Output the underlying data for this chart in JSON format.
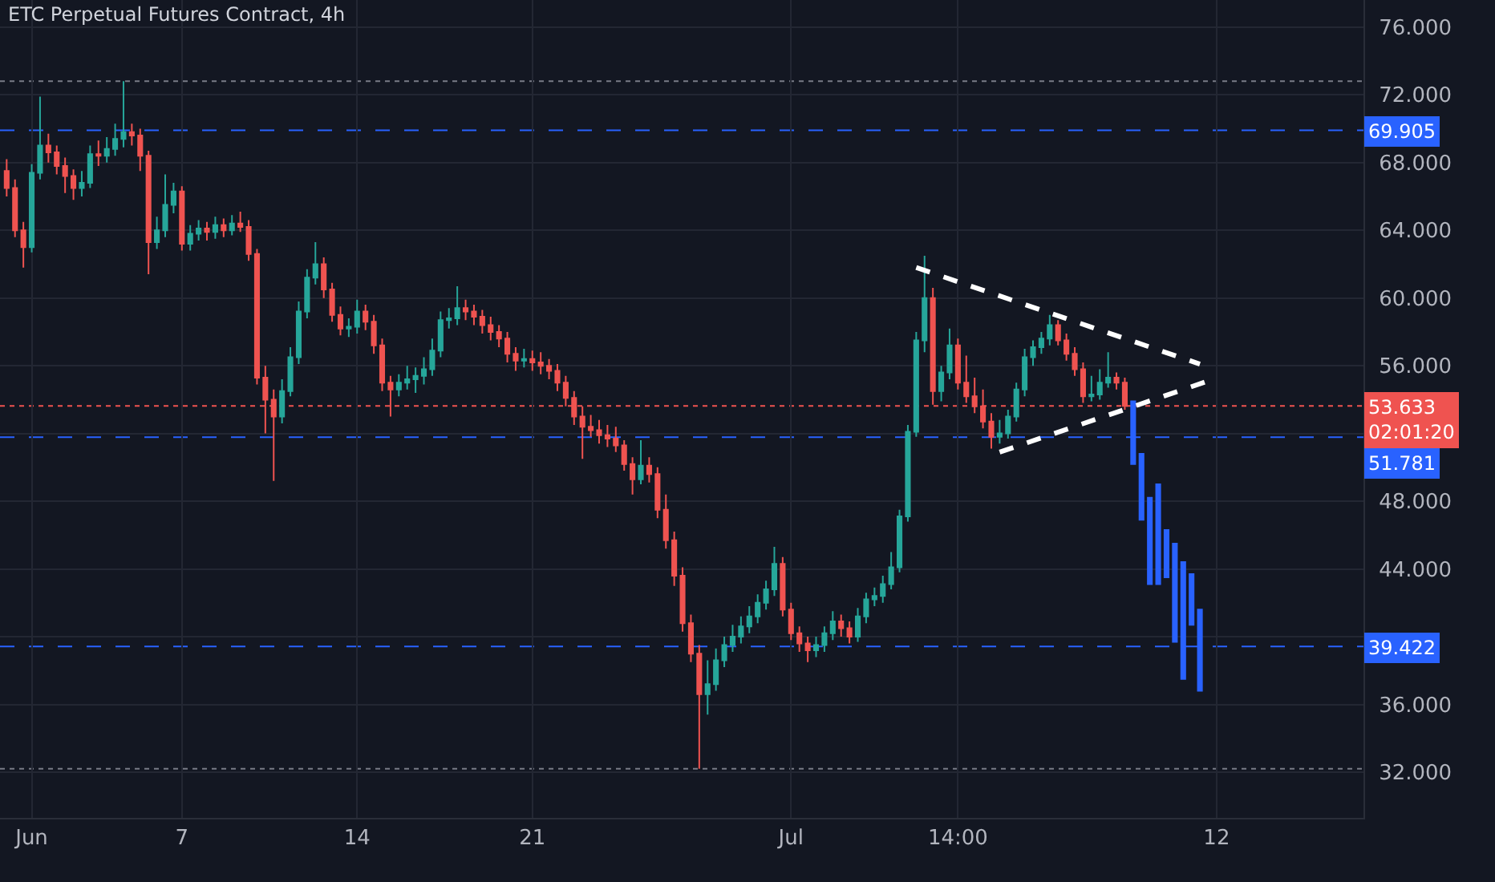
{
  "chart_data": {
    "type": "candlestick",
    "title": "ETC Perpetual Futures Contract, 4h",
    "categories": [
      null,
      null,
      null,
      "Jun",
      null,
      null,
      null,
      null,
      null,
      null,
      null,
      null,
      null,
      null,
      null,
      null,
      null,
      null,
      null,
      null,
      null,
      "7",
      null,
      null,
      null,
      null,
      null,
      null,
      null,
      null,
      null,
      null,
      null,
      null,
      null,
      null,
      null,
      null,
      null,
      null,
      null,
      null,
      "14",
      null,
      null,
      null,
      null,
      null,
      null,
      null,
      null,
      null,
      null,
      null,
      null,
      null,
      null,
      null,
      null,
      null,
      null,
      null,
      null,
      "21",
      null,
      null,
      null,
      null,
      null,
      null,
      null,
      null,
      null,
      null,
      null,
      null,
      null,
      null,
      null,
      null,
      null,
      null,
      null,
      null,
      null,
      null,
      null,
      null,
      null,
      null,
      null,
      null,
      null,
      null,
      "Jul",
      null,
      null,
      null,
      null,
      null,
      null,
      null,
      null,
      null,
      null,
      null,
      null,
      null,
      null,
      null,
      null,
      null,
      null,
      null,
      "14:00",
      null,
      null,
      null,
      null,
      null,
      null,
      null,
      null,
      null,
      null,
      null,
      null,
      null,
      null,
      null,
      null,
      null,
      null,
      null,
      null,
      null,
      null,
      null,
      null,
      null,
      null,
      null,
      null,
      null,
      null,
      "12",
      null,
      null,
      null,
      null,
      null,
      null,
      null,
      null,
      null,
      null,
      null,
      null,
      null,
      null,
      null,
      null,
      null
    ],
    "ylim": [
      29.3,
      77.6
    ],
    "yticks": [
      {
        "value": 32,
        "label": "32.000"
      },
      {
        "value": 36,
        "label": "36.000"
      },
      {
        "value": 40,
        "label": null
      },
      {
        "value": 44,
        "label": "44.000"
      },
      {
        "value": 48,
        "label": "48.000"
      },
      {
        "value": 52,
        "label": null
      },
      {
        "value": 56,
        "label": "56.000"
      },
      {
        "value": 60,
        "label": "60.000"
      },
      {
        "value": 64,
        "label": "64.000"
      },
      {
        "value": 68,
        "label": "68.000"
      },
      {
        "value": 72,
        "label": "72.000"
      },
      {
        "value": 76,
        "label": "76.000"
      }
    ],
    "grid": true,
    "series": [
      {
        "colors": [
          "#ef5350",
          "#ef5350",
          "#ef5350",
          "#26a69a",
          "#26a69a",
          "#ef5350",
          "#ef5350",
          "#ef5350",
          "#ef5350",
          "#26a69a",
          "#26a69a",
          "#ef5350",
          "#26a69a",
          "#26a69a",
          "#26a69a",
          "#ef5350",
          "#ef5350",
          "#ef5350",
          "#26a69a",
          "#26a69a",
          "#26a69a",
          "#ef5350",
          "#26a69a",
          "#26a69a",
          "#ef5350",
          "#26a69a",
          "#ef5350",
          "#26a69a",
          "#ef5350",
          "#ef5350",
          "#ef5350",
          "#ef5350",
          "#ef5350",
          "#26a69a",
          "#26a69a",
          "#26a69a",
          "#26a69a",
          "#26a69a",
          "#ef5350",
          "#ef5350",
          "#ef5350",
          "#26a69a",
          "#26a69a",
          "#ef5350",
          "#ef5350",
          "#ef5350",
          "#ef5350",
          "#26a69a",
          "#26a69a",
          "#26a69a",
          "#26a69a",
          "#26a69a",
          "#26a69a",
          "#26a69a",
          "#26a69a",
          "#ef5350",
          "#ef5350",
          "#ef5350",
          "#ef5350",
          "#ef5350",
          "#ef5350",
          "#ef5350",
          "#26a69a",
          "#ef5350",
          "#ef5350",
          "#ef5350",
          "#ef5350",
          "#ef5350",
          "#ef5350",
          "#ef5350",
          "#ef5350",
          "#ef5350",
          "#ef5350",
          "#ef5350",
          "#ef5350",
          "#ef5350",
          "#26a69a",
          "#ef5350",
          "#ef5350",
          "#ef5350",
          "#ef5350",
          "#ef5350",
          "#ef5350",
          "#ef5350",
          "#26a69a",
          "#26a69a",
          "#26a69a",
          "#26a69a",
          "#26a69a",
          "#26a69a",
          "#26a69a",
          "#26a69a",
          "#26a69a",
          "#ef5350",
          "#ef5350",
          "#ef5350",
          "#ef5350",
          "#26a69a",
          "#26a69a",
          "#26a69a",
          "#ef5350",
          "#ef5350",
          "#26a69a",
          "#26a69a",
          "#26a69a",
          "#26a69a",
          "#26a69a",
          "#26a69a",
          "#26a69a",
          "#26a69a",
          "#26a69a",
          "#ef5350",
          "#26a69a",
          "#26a69a",
          "#ef5350",
          "#ef5350",
          "#ef5350",
          "#ef5350",
          "#ef5350",
          "#26a69a",
          "#26a69a",
          "#26a69a",
          "#26a69a",
          "#26a69a",
          "#26a69a",
          "#26a69a",
          "#ef5350",
          "#ef5350",
          "#ef5350",
          "#ef5350",
          "#26a69a",
          "#26a69a",
          "#26a69a",
          "#ef5350",
          "#ef5350",
          null,
          null,
          null,
          null,
          null,
          null,
          null,
          null,
          null,
          null,
          null,
          null,
          null,
          null,
          null,
          null,
          null,
          null,
          null,
          null,
          null,
          null,
          null,
          null,
          null,
          null,
          null,
          null
        ],
        "ohlc": [
          [
            67.5,
            68.2,
            66,
            66.5
          ],
          [
            66.5,
            67,
            63.6,
            64
          ],
          [
            64,
            64.5,
            61.8,
            63
          ],
          [
            63,
            67.9,
            62.7,
            67.4
          ],
          [
            67.4,
            71.9,
            67,
            69
          ],
          [
            69,
            69.7,
            68,
            68.6
          ],
          [
            68.6,
            69,
            67.3,
            67.8
          ],
          [
            67.8,
            68.3,
            66.2,
            67.2
          ],
          [
            67.2,
            67.6,
            65.8,
            66.5
          ],
          [
            66.5,
            67.5,
            66,
            66.8
          ],
          [
            66.8,
            69,
            66.5,
            68.5
          ],
          [
            68.5,
            69.3,
            67.8,
            68.4
          ],
          [
            68.4,
            69.5,
            68,
            68.8
          ],
          [
            68.8,
            70.3,
            68.4,
            69.4
          ],
          [
            69.4,
            72.8,
            68.9,
            69.8
          ],
          [
            69.8,
            70.3,
            69,
            69.6
          ],
          [
            69.6,
            70,
            67.5,
            68.4
          ],
          [
            68.4,
            68.7,
            61.4,
            63.3
          ],
          [
            63.3,
            64.8,
            62.9,
            64
          ],
          [
            64,
            67.3,
            63.6,
            65.5
          ],
          [
            65.5,
            66.8,
            65,
            66.3
          ],
          [
            66.3,
            66.6,
            62.8,
            63.2
          ],
          [
            63.2,
            64.3,
            62.8,
            63.8
          ],
          [
            63.8,
            64.6,
            63.4,
            64.1
          ],
          [
            64.1,
            64.5,
            63.4,
            63.9
          ],
          [
            63.9,
            64.8,
            63.5,
            64.3
          ],
          [
            64.3,
            64.7,
            63.6,
            64
          ],
          [
            64,
            64.9,
            63.7,
            64.4
          ],
          [
            64.4,
            65.1,
            63.9,
            64.2
          ],
          [
            64.2,
            64.6,
            62.2,
            62.6
          ],
          [
            62.6,
            62.9,
            54.9,
            55.3
          ],
          [
            55.3,
            56,
            52,
            54
          ],
          [
            54,
            54.6,
            49.2,
            53
          ],
          [
            53,
            55.2,
            52.6,
            54.5
          ],
          [
            54.5,
            57.1,
            54.2,
            56.5
          ],
          [
            56.5,
            59.8,
            56.1,
            59.2
          ],
          [
            59.2,
            61.7,
            58.8,
            61.2
          ],
          [
            61.2,
            63.3,
            60.8,
            62
          ],
          [
            62,
            62.4,
            60,
            60.5
          ],
          [
            60.5,
            60.9,
            58.6,
            59
          ],
          [
            59,
            59.5,
            57.8,
            58.2
          ],
          [
            58.2,
            58.8,
            57.7,
            58.3
          ],
          [
            58.3,
            59.9,
            57.9,
            59.2
          ],
          [
            59.2,
            59.6,
            58.1,
            58.6
          ],
          [
            58.6,
            59,
            56.7,
            57.2
          ],
          [
            57.2,
            57.6,
            54.5,
            55
          ],
          [
            55,
            55.4,
            53,
            54.6
          ],
          [
            54.6,
            55.5,
            54.2,
            55
          ],
          [
            55,
            56,
            54.6,
            55.2
          ],
          [
            55.2,
            55.9,
            54.4,
            55.4
          ],
          [
            55.4,
            56.5,
            54.9,
            55.8
          ],
          [
            55.8,
            57.6,
            55.4,
            56.9
          ],
          [
            56.9,
            59.2,
            56.5,
            58.7
          ],
          [
            58.7,
            59.4,
            58.2,
            58.8
          ],
          [
            58.8,
            60.7,
            58.4,
            59.4
          ],
          [
            59.4,
            59.9,
            58.7,
            59.2
          ],
          [
            59.2,
            59.6,
            58.4,
            58.9
          ],
          [
            58.9,
            59.3,
            57.9,
            58.4
          ],
          [
            58.4,
            58.9,
            57.5,
            58
          ],
          [
            58,
            58.4,
            57.1,
            57.6
          ],
          [
            57.6,
            58,
            56.2,
            56.7
          ],
          [
            56.7,
            57.1,
            55.7,
            56.3
          ],
          [
            56.3,
            57,
            55.9,
            56.4
          ],
          [
            56.4,
            56.9,
            55.7,
            56.2
          ],
          [
            56.2,
            56.8,
            55.5,
            56
          ],
          [
            56,
            56.4,
            55.2,
            55.7
          ],
          [
            55.7,
            56.1,
            54.5,
            55
          ],
          [
            55,
            55.4,
            53.6,
            54.1
          ],
          [
            54.1,
            54.5,
            52.5,
            53
          ],
          [
            53,
            53.6,
            50.5,
            52.4
          ],
          [
            52.4,
            53.1,
            51.8,
            52.2
          ],
          [
            52.2,
            52.8,
            51.4,
            51.9
          ],
          [
            51.9,
            52.5,
            51.2,
            51.7
          ],
          [
            51.7,
            52.4,
            50.9,
            51.3
          ],
          [
            51.3,
            51.6,
            49.8,
            50.2
          ],
          [
            50.2,
            50.6,
            48.4,
            49.3
          ],
          [
            49.3,
            51.6,
            49,
            50.1
          ],
          [
            50.1,
            50.6,
            49.1,
            49.6
          ],
          [
            49.6,
            50,
            47,
            47.5
          ],
          [
            47.5,
            48.4,
            45.2,
            45.7
          ],
          [
            45.7,
            46.2,
            43,
            43.6
          ],
          [
            43.6,
            44.1,
            40.3,
            40.8
          ],
          [
            40.8,
            41.3,
            38.5,
            39
          ],
          [
            39,
            39.5,
            32.2,
            36.6
          ],
          [
            36.6,
            38.6,
            35.4,
            37.2
          ],
          [
            37.2,
            39.3,
            36.8,
            38.6
          ],
          [
            38.6,
            40,
            38.2,
            39.5
          ],
          [
            39.5,
            40.7,
            39.1,
            40
          ],
          [
            40,
            41.2,
            39.6,
            40.6
          ],
          [
            40.6,
            41.8,
            40.2,
            41.2
          ],
          [
            41.2,
            42.5,
            40.8,
            42
          ],
          [
            42,
            43.3,
            41.6,
            42.8
          ],
          [
            42.8,
            45.3,
            42.4,
            44.3
          ],
          [
            44.3,
            44.7,
            41.2,
            41.6
          ],
          [
            41.6,
            42,
            39.8,
            40.2
          ],
          [
            40.2,
            40.6,
            39.1,
            39.6
          ],
          [
            39.6,
            40,
            38.5,
            39.2
          ],
          [
            39.2,
            40,
            38.8,
            39.5
          ],
          [
            39.5,
            40.6,
            39.1,
            40.2
          ],
          [
            40.2,
            41.5,
            39.8,
            40.9
          ],
          [
            40.9,
            41.3,
            40,
            40.5
          ],
          [
            40.5,
            40.9,
            39.6,
            40
          ],
          [
            40,
            41.7,
            39.7,
            41.2
          ],
          [
            41.2,
            42.6,
            40.8,
            42.2
          ],
          [
            42.2,
            42.9,
            41.8,
            42.4
          ],
          [
            42.4,
            43.6,
            42,
            43.1
          ],
          [
            43.1,
            45,
            42.8,
            44.1
          ],
          [
            44.1,
            47.5,
            43.8,
            47.1
          ],
          [
            47.1,
            52.5,
            46.8,
            52.1
          ],
          [
            52.1,
            58,
            51.8,
            57.5
          ],
          [
            57.5,
            62.5,
            56.8,
            60
          ],
          [
            60,
            60.6,
            53.7,
            54.5
          ],
          [
            54.5,
            56,
            53.9,
            55.6
          ],
          [
            55.6,
            58.2,
            55.2,
            57.2
          ],
          [
            57.2,
            57.6,
            54.6,
            55
          ],
          [
            55,
            56.6,
            53.8,
            54.2
          ],
          [
            54.2,
            55.3,
            53.2,
            53.6
          ],
          [
            53.6,
            54.6,
            52.3,
            52.7
          ],
          [
            52.7,
            53.2,
            51.1,
            51.8
          ],
          [
            51.8,
            52.8,
            51.4,
            52
          ],
          [
            52,
            53.4,
            51.7,
            53
          ],
          [
            53,
            55,
            52.7,
            54.6
          ],
          [
            54.6,
            57,
            54.2,
            56.5
          ],
          [
            56.5,
            57.5,
            56,
            57.1
          ],
          [
            57.1,
            58,
            56.7,
            57.6
          ],
          [
            57.6,
            59,
            57.2,
            58.4
          ],
          [
            58.4,
            58.7,
            57.2,
            57.5
          ],
          [
            57.5,
            57.9,
            56.3,
            56.7
          ],
          [
            56.7,
            57.1,
            55.4,
            55.8
          ],
          [
            55.8,
            56.2,
            53.8,
            54.2
          ],
          [
            54.2,
            55.4,
            53.9,
            54.3
          ],
          [
            54.3,
            55.8,
            54,
            55
          ],
          [
            55,
            56.8,
            54.7,
            55.3
          ],
          [
            55.3,
            55.6,
            54.6,
            55
          ],
          [
            55,
            55.3,
            53.4,
            53.633
          ],
          null,
          null,
          null,
          null,
          null,
          null,
          null,
          null,
          null,
          null,
          null,
          null,
          null,
          null,
          null,
          null,
          null,
          null,
          null,
          null,
          null,
          null,
          null,
          null,
          null,
          null,
          null,
          null
        ]
      },
      {
        "color": "#2962ff",
        "ohlc": [
          null,
          null,
          null,
          null,
          null,
          null,
          null,
          null,
          null,
          null,
          null,
          null,
          null,
          null,
          null,
          null,
          null,
          null,
          null,
          null,
          null,
          null,
          null,
          null,
          null,
          null,
          null,
          null,
          null,
          null,
          null,
          null,
          null,
          null,
          null,
          null,
          null,
          null,
          null,
          null,
          null,
          null,
          null,
          null,
          null,
          null,
          null,
          null,
          null,
          null,
          null,
          null,
          null,
          null,
          null,
          null,
          null,
          null,
          null,
          null,
          null,
          null,
          null,
          null,
          null,
          null,
          null,
          null,
          null,
          null,
          null,
          null,
          null,
          null,
          null,
          null,
          null,
          null,
          null,
          null,
          null,
          null,
          null,
          null,
          null,
          null,
          null,
          null,
          null,
          null,
          null,
          null,
          null,
          null,
          null,
          null,
          null,
          null,
          null,
          null,
          null,
          null,
          null,
          null,
          null,
          null,
          null,
          null,
          null,
          null,
          null,
          null,
          null,
          null,
          null,
          null,
          null,
          null,
          null,
          null,
          null,
          null,
          null,
          null,
          null,
          null,
          null,
          null,
          null,
          null,
          null,
          null,
          null,
          null,
          null,
          [
            53.9,
            53.9,
            50.2,
            50.2
          ],
          [
            50.8,
            50.8,
            46.9,
            46.9
          ],
          [
            48.2,
            48.2,
            43.1,
            43.1
          ],
          [
            49,
            49,
            43.1,
            43.1
          ],
          [
            46.3,
            46.3,
            43.5,
            43.5
          ],
          [
            45.5,
            45.5,
            39.7,
            39.7
          ],
          [
            44.4,
            44.4,
            37.5,
            37.5
          ],
          [
            43.7,
            43.7,
            40.7,
            40.7
          ],
          [
            41.6,
            41.6,
            36.8,
            36.8
          ],
          null,
          null,
          null,
          null,
          null,
          null,
          null,
          null,
          null,
          null,
          null,
          null,
          null,
          null,
          null,
          null,
          null,
          null,
          null
        ]
      },
      {
        "type": "line",
        "color": "#ffffff",
        "line_style": "dashed",
        "values": [
          null,
          null,
          null,
          null,
          null,
          null,
          null,
          null,
          null,
          null,
          null,
          null,
          null,
          null,
          null,
          null,
          null,
          null,
          null,
          null,
          null,
          null,
          null,
          null,
          null,
          null,
          null,
          null,
          null,
          null,
          null,
          null,
          null,
          null,
          null,
          null,
          null,
          null,
          null,
          null,
          null,
          null,
          null,
          null,
          null,
          null,
          null,
          null,
          null,
          null,
          null,
          null,
          null,
          null,
          null,
          null,
          null,
          null,
          null,
          null,
          null,
          null,
          null,
          null,
          null,
          null,
          null,
          null,
          null,
          null,
          null,
          null,
          null,
          null,
          null,
          null,
          null,
          null,
          null,
          null,
          null,
          null,
          null,
          null,
          null,
          null,
          null,
          null,
          null,
          null,
          null,
          null,
          null,
          null,
          null,
          null,
          null,
          null,
          null,
          null,
          null,
          null,
          null,
          null,
          null,
          null,
          null,
          null,
          null,
          61.8,
          null,
          null,
          null,
          null,
          null,
          null,
          null,
          null,
          null,
          null,
          null,
          null,
          null,
          null,
          null,
          null,
          null,
          null,
          null,
          null,
          null,
          null,
          null,
          null,
          null,
          null,
          null,
          null,
          null,
          null,
          null,
          null,
          null,
          56.1,
          null,
          null,
          null,
          null,
          null,
          null,
          null,
          null,
          null,
          null,
          null,
          null,
          null,
          null,
          null,
          null,
          null,
          null,
          null
        ]
      },
      {
        "type": "line",
        "color": "#ffffff",
        "line_style": "dashed",
        "values": [
          null,
          null,
          null,
          null,
          null,
          null,
          null,
          null,
          null,
          null,
          null,
          null,
          null,
          null,
          null,
          null,
          null,
          null,
          null,
          null,
          null,
          null,
          null,
          null,
          null,
          null,
          null,
          null,
          null,
          null,
          null,
          null,
          null,
          null,
          null,
          null,
          null,
          null,
          null,
          null,
          null,
          null,
          null,
          null,
          null,
          null,
          null,
          null,
          null,
          null,
          null,
          null,
          null,
          null,
          null,
          null,
          null,
          null,
          null,
          null,
          null,
          null,
          null,
          null,
          null,
          null,
          null,
          null,
          null,
          null,
          null,
          null,
          null,
          null,
          null,
          null,
          null,
          null,
          null,
          null,
          null,
          null,
          null,
          null,
          null,
          null,
          null,
          null,
          null,
          null,
          null,
          null,
          null,
          null,
          null,
          null,
          null,
          null,
          null,
          null,
          null,
          null,
          null,
          null,
          null,
          null,
          null,
          null,
          null,
          null,
          null,
          null,
          null,
          null,
          null,
          null,
          null,
          null,
          null,
          50.9,
          null,
          null,
          null,
          null,
          null,
          null,
          null,
          null,
          null,
          null,
          null,
          null,
          null,
          null,
          null,
          null,
          null,
          null,
          null,
          null,
          null,
          null,
          null,
          null,
          55.1,
          null,
          null,
          null,
          null,
          null,
          null,
          null,
          null,
          null,
          null,
          null,
          null,
          null,
          null,
          null,
          null,
          null,
          null
        ]
      }
    ],
    "ref_lines": [
      {
        "axis": "y",
        "value": 72.8,
        "color": "#787b86",
        "line_style": "dotted"
      },
      {
        "axis": "y",
        "value": 69.905,
        "label": "69.905",
        "color": "#2962ff",
        "line_style": "dashed"
      },
      {
        "axis": "y",
        "value": 53.633,
        "label": "53.633\n02:01:20",
        "color": "#ef5350",
        "line_style": "dotted"
      },
      {
        "axis": "y",
        "value": 51.781,
        "label": "51.781",
        "color": "#2962ff",
        "line_style": "dashed"
      },
      {
        "axis": "y",
        "value": 39.422,
        "label": "39.422",
        "color": "#2962ff",
        "line_style": "dashed"
      },
      {
        "axis": "y",
        "value": 32.2,
        "color": "#787b86",
        "line_style": "dotted"
      }
    ]
  }
}
